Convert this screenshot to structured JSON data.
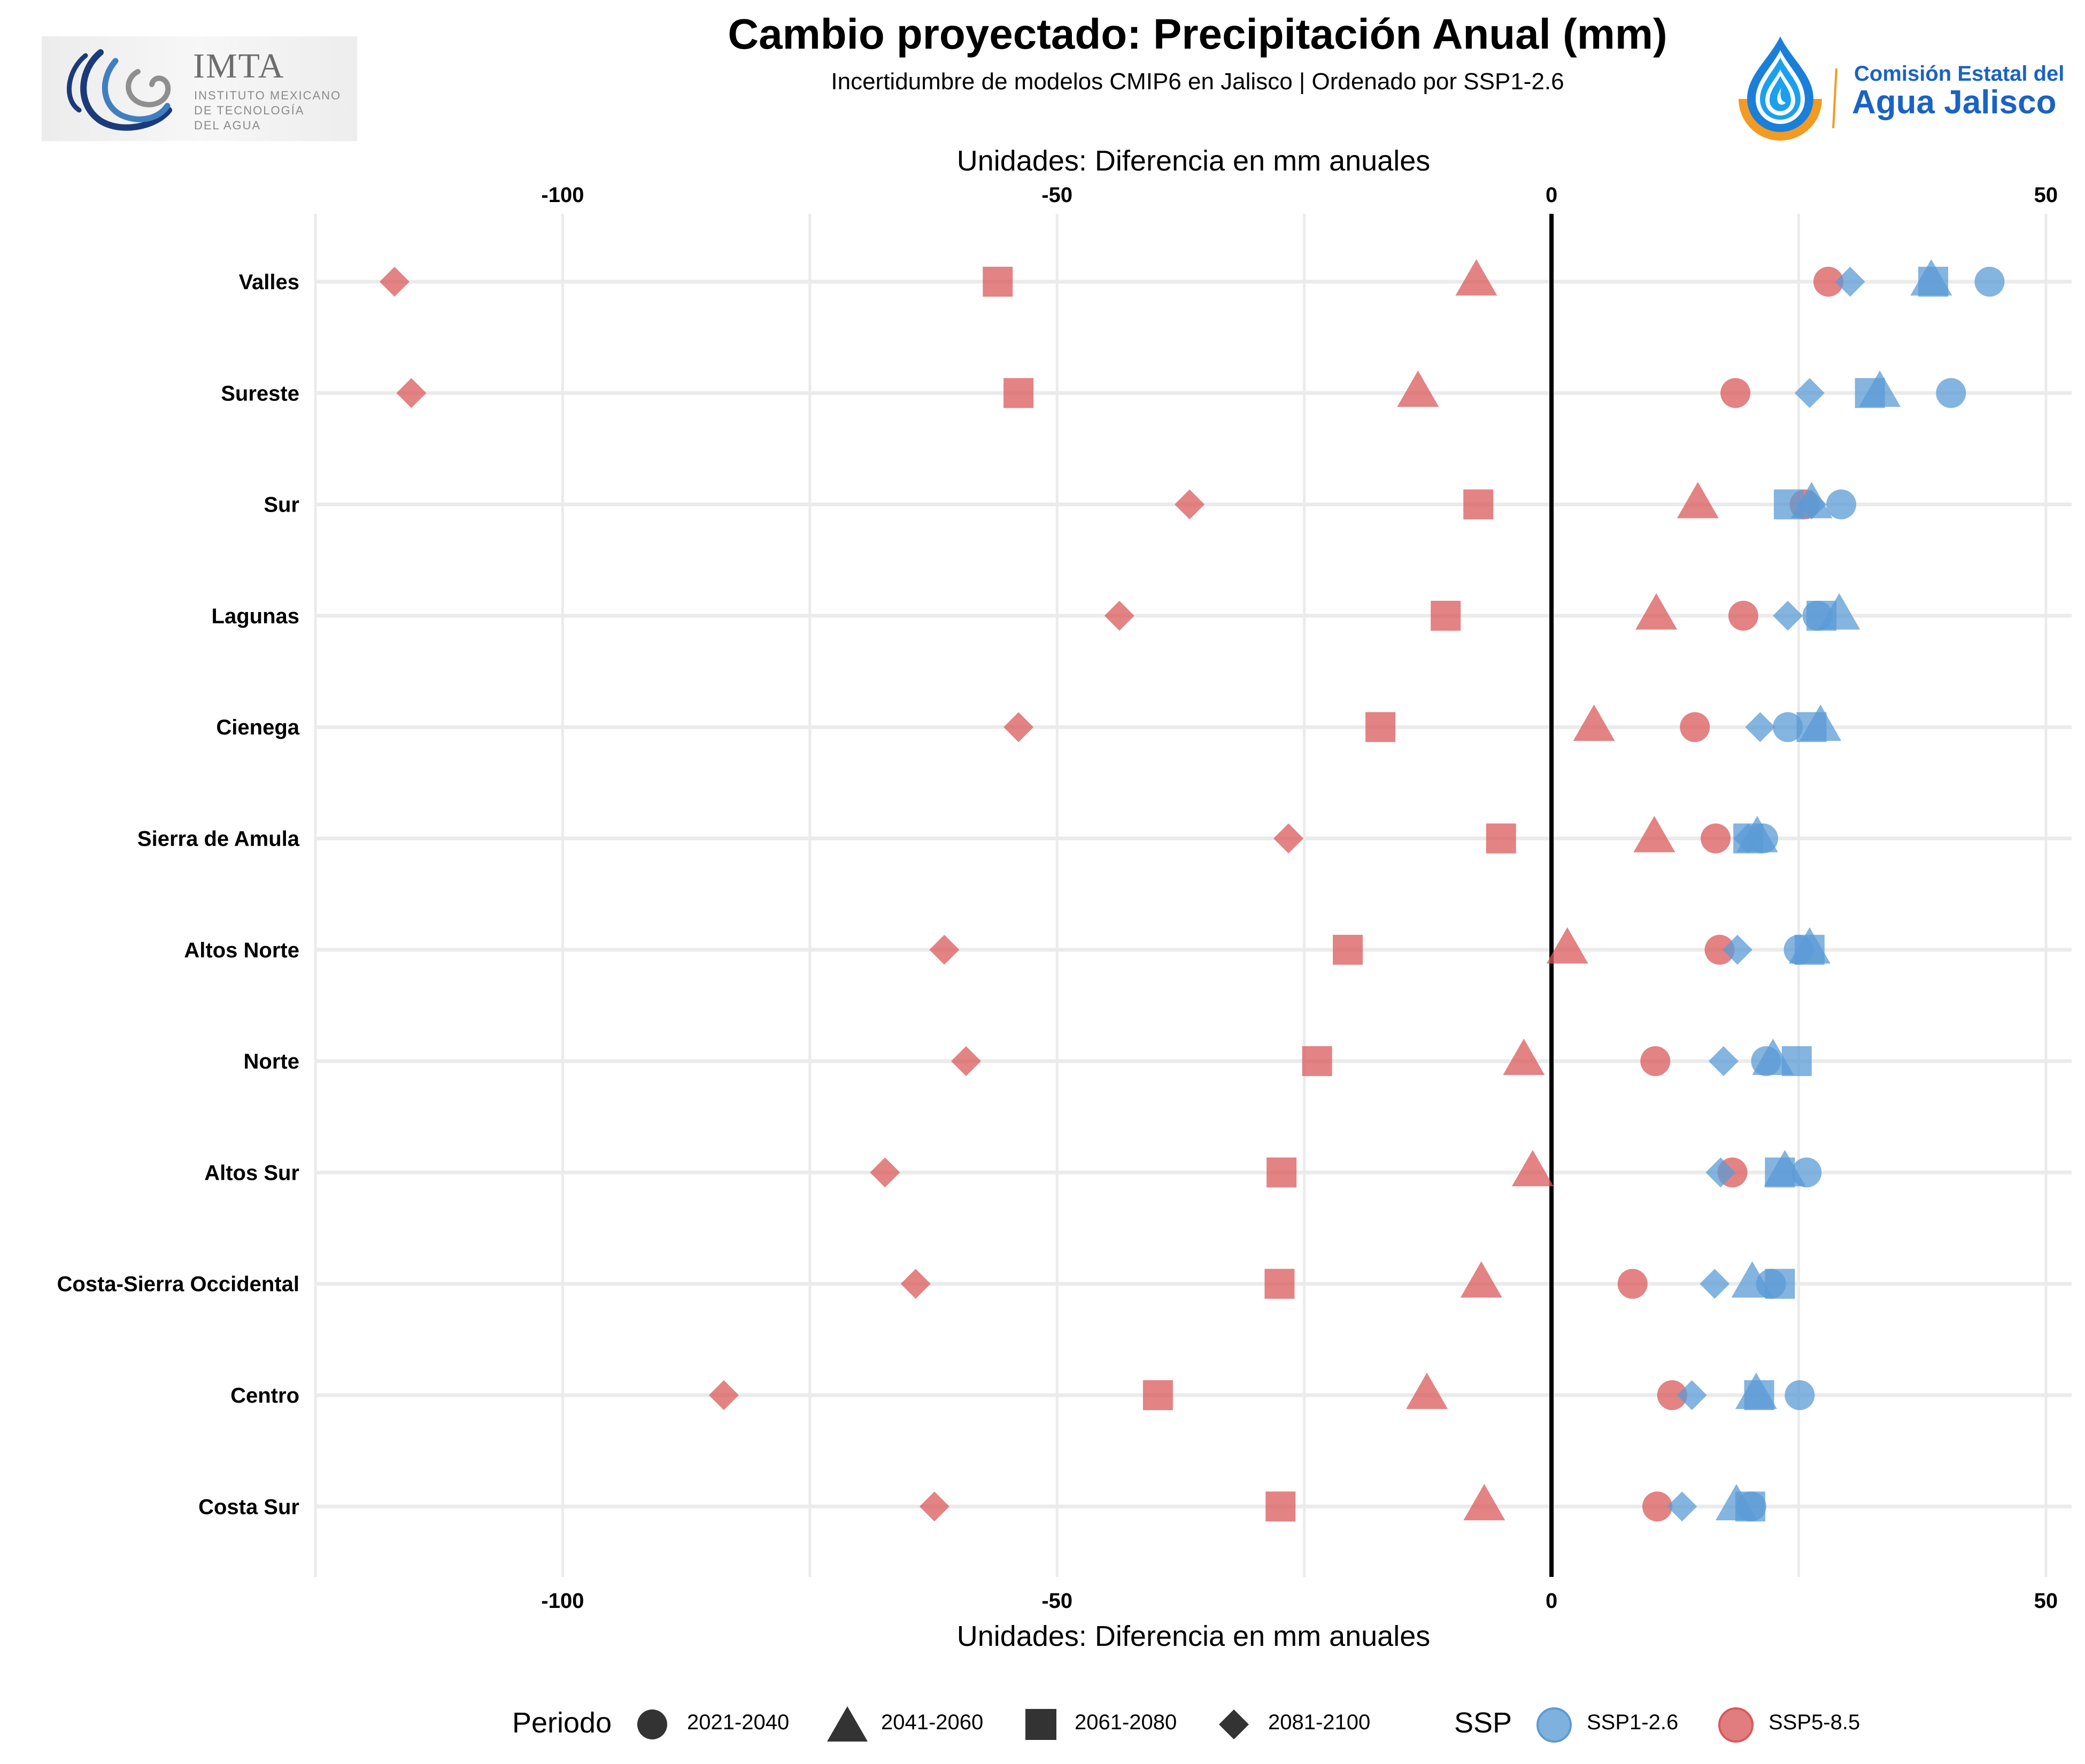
{
  "header": {
    "title": "Cambio proyectado: Precipitación Anual (mm)",
    "subtitle": "Incertidumbre de modelos CMIP6 en Jalisco | Ordenado por SSP1-2.6"
  },
  "logos": {
    "left": {
      "name": "IMTA",
      "lines": [
        "INSTITUTO MEXICANO",
        "DE TECNOLOGÍA",
        "DEL AGUA"
      ]
    },
    "right": {
      "line1": "Comisión Estatal del",
      "line2": "Agua Jalisco"
    }
  },
  "colors": {
    "ssp126": "#5b9bd5",
    "ssp585": "#d9595b",
    "zero_line": "#000000",
    "grid": "#ebebeb",
    "legend_shape": "#333333",
    "imta_dark": "#1b3a7a",
    "imta_mid": "#3f7fc1",
    "imta_gray": "#8f8f8f",
    "cea_blue": "#1a63c4",
    "cea_light": "#1aa0ef",
    "cea_orange": "#f39a23"
  },
  "chart_data": {
    "type": "scatter",
    "title": "Cambio proyectado: Precipitación Anual (mm)",
    "subtitle": "Incertidumbre de modelos CMIP6 en Jalisco | Ordenado por SSP1-2.6",
    "xlabel": "Unidades: Diferencia en mm anuales",
    "ylabel": "",
    "xlim": [
      -125,
      52.6
    ],
    "xticks": [
      -100,
      -50,
      0,
      50
    ],
    "xtick_labels": [
      "-100",
      "-50",
      "0",
      "50"
    ],
    "minor_gridlines": [
      -125,
      -75,
      -25,
      25
    ],
    "x_axis_both_sides": true,
    "reference_line": 0,
    "grid": true,
    "legend_position": "bottom",
    "categories": [
      "Valles",
      "Sureste",
      "Sur",
      "Lagunas",
      "Cienega",
      "Sierra de Amula",
      "Altos Norte",
      "Norte",
      "Altos Sur",
      "Costa-Sierra Occidental",
      "Centro",
      "Costa Sur"
    ],
    "periods": [
      {
        "name": "2021-2040",
        "shape": "circle"
      },
      {
        "name": "2041-2060",
        "shape": "triangle"
      },
      {
        "name": "2061-2080",
        "shape": "square"
      },
      {
        "name": "2081-2100",
        "shape": "diamond"
      }
    ],
    "series": [
      {
        "name": "SSP1-2.6",
        "color": "#5b9bd5",
        "values": {
          "2021-2040": [
            44.3,
            40.4,
            29.3,
            26.9,
            23.9,
            21.4,
            25.0,
            21.7,
            25.8,
            22.2,
            25.1,
            20.2
          ],
          "2041-2060": [
            38.4,
            33.2,
            26.3,
            29.1,
            27.2,
            20.8,
            26.1,
            22.4,
            23.6,
            20.3,
            20.7,
            18.7
          ],
          "2061-2080": [
            38.6,
            32.2,
            24.0,
            27.3,
            26.3,
            19.9,
            26.1,
            24.8,
            23.1,
            23.1,
            21.0,
            20.1
          ],
          "2081-2100": [
            30.2,
            26.1,
            26.3,
            23.9,
            21.1,
            19.9,
            18.8,
            17.4,
            17.1,
            16.5,
            14.2,
            13.2
          ]
        }
      },
      {
        "name": "SSP5-8.5",
        "color": "#d9595b",
        "values": {
          "2021-2040": [
            28.0,
            18.6,
            25.6,
            19.4,
            14.5,
            16.6,
            17.0,
            10.5,
            18.3,
            8.2,
            12.2,
            10.7
          ],
          "2041-2060": [
            -7.6,
            -13.5,
            14.8,
            10.6,
            4.3,
            10.4,
            1.6,
            -2.8,
            -1.9,
            -7.1,
            -12.6,
            -6.8
          ],
          "2061-2080": [
            -56.0,
            -53.9,
            -7.4,
            -10.7,
            -17.3,
            -5.1,
            -20.6,
            -23.7,
            -27.3,
            -27.5,
            -39.8,
            -27.4
          ],
          "2081-2100": [
            -117.0,
            -115.3,
            -36.6,
            -43.7,
            -53.9,
            -26.6,
            -61.4,
            -59.2,
            -67.4,
            -64.3,
            -83.7,
            -62.4
          ]
        }
      }
    ]
  },
  "legend": {
    "period_title": "Periodo",
    "period_items": [
      {
        "label": "2021-2040",
        "shape": "circle"
      },
      {
        "label": "2041-2060",
        "shape": "triangle"
      },
      {
        "label": "2061-2080",
        "shape": "square"
      },
      {
        "label": "2081-2100",
        "shape": "diamond"
      }
    ],
    "ssp_title": "SSP",
    "ssp_items": [
      {
        "label": "SSP1-2.6",
        "color": "#5b9bd5"
      },
      {
        "label": "SSP5-8.5",
        "color": "#d9595b"
      }
    ]
  }
}
